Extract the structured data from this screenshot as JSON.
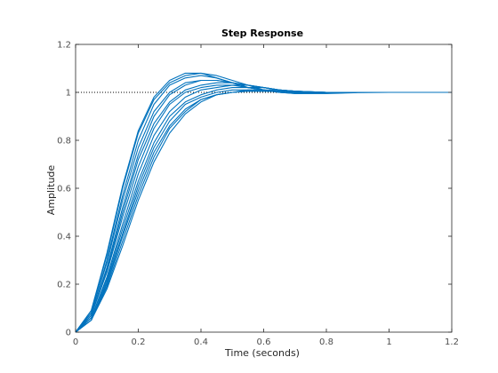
{
  "figure": {
    "background": "#ffffff",
    "axes_color": "#262626",
    "tick_label_color": "#4d4d4d",
    "line_color": "#0072bd"
  },
  "chart_data": {
    "type": "line",
    "title": "Step Response",
    "xlabel": "Time (seconds)",
    "ylabel": "Amplitude",
    "xlim": [
      0,
      1.2
    ],
    "ylim": [
      0,
      1.2
    ],
    "xticks": [
      0,
      0.2,
      0.4,
      0.6,
      0.8,
      1,
      1.2
    ],
    "xtick_labels": [
      "0",
      "0.2",
      "0.4",
      "0.6",
      "0.8",
      "1",
      "1.2"
    ],
    "yticks": [
      0,
      0.2,
      0.4,
      0.6,
      0.8,
      1,
      1.2
    ],
    "ytick_labels": [
      "0",
      "0.2",
      "0.4",
      "0.6",
      "0.8",
      "1",
      "1.2"
    ],
    "grid": false,
    "legend": "none",
    "steady_state_reference": {
      "y": 1,
      "style": "dotted",
      "color": "#000000"
    },
    "series": [
      {
        "x": [
          0,
          0.05,
          0.1,
          0.15,
          0.2,
          0.25,
          0.3,
          0.35,
          0.4,
          0.45,
          0.5,
          0.55,
          0.6,
          0.65,
          0.7,
          0.8,
          0.9,
          1.0,
          1.2
        ],
        "y": [
          0,
          0.09,
          0.33,
          0.61,
          0.84,
          0.98,
          1.05,
          1.08,
          1.08,
          1.06,
          1.04,
          1.02,
          1.01,
          1.0,
          0.995,
          0.995,
          0.999,
          1.0,
          1.0
        ]
      },
      {
        "x": [
          0,
          0.05,
          0.1,
          0.15,
          0.2,
          0.25,
          0.3,
          0.35,
          0.4,
          0.45,
          0.5,
          0.55,
          0.6,
          0.65,
          0.7,
          0.8,
          0.9,
          1.0,
          1.2
        ],
        "y": [
          0,
          0.09,
          0.32,
          0.6,
          0.83,
          0.97,
          1.04,
          1.07,
          1.08,
          1.07,
          1.05,
          1.03,
          1.01,
          1.0,
          0.995,
          0.996,
          1.0,
          1.0,
          1.0
        ]
      },
      {
        "x": [
          0,
          0.05,
          0.1,
          0.15,
          0.2,
          0.25,
          0.3,
          0.35,
          0.4,
          0.45,
          0.5,
          0.55,
          0.6,
          0.65,
          0.7,
          0.8,
          0.9,
          1.0,
          1.2
        ],
        "y": [
          0,
          0.08,
          0.3,
          0.57,
          0.8,
          0.95,
          1.03,
          1.06,
          1.07,
          1.06,
          1.04,
          1.02,
          1.01,
          1.0,
          0.997,
          0.997,
          1.0,
          1.0,
          1.0
        ]
      },
      {
        "x": [
          0,
          0.05,
          0.1,
          0.15,
          0.2,
          0.25,
          0.3,
          0.35,
          0.4,
          0.45,
          0.5,
          0.55,
          0.6,
          0.65,
          0.7,
          0.8,
          0.9,
          1.0,
          1.2
        ],
        "y": [
          0,
          0.08,
          0.29,
          0.55,
          0.77,
          0.92,
          1.0,
          1.04,
          1.05,
          1.05,
          1.04,
          1.02,
          1.01,
          1.0,
          0.997,
          0.998,
          1.0,
          1.0,
          1.0
        ]
      },
      {
        "x": [
          0,
          0.05,
          0.1,
          0.15,
          0.2,
          0.25,
          0.3,
          0.35,
          0.4,
          0.45,
          0.5,
          0.55,
          0.6,
          0.65,
          0.7,
          0.8,
          0.9,
          1.0,
          1.2
        ],
        "y": [
          0,
          0.07,
          0.27,
          0.52,
          0.74,
          0.9,
          0.99,
          1.03,
          1.05,
          1.05,
          1.04,
          1.03,
          1.02,
          1.01,
          1.0,
          0.998,
          1.0,
          1.0,
          1.0
        ]
      },
      {
        "x": [
          0,
          0.05,
          0.1,
          0.15,
          0.2,
          0.25,
          0.3,
          0.35,
          0.4,
          0.45,
          0.5,
          0.55,
          0.6,
          0.65,
          0.7,
          0.8,
          0.9,
          1.0,
          1.2
        ],
        "y": [
          0,
          0.07,
          0.26,
          0.5,
          0.72,
          0.87,
          0.96,
          1.01,
          1.03,
          1.04,
          1.04,
          1.03,
          1.02,
          1.01,
          1.005,
          0.999,
          1.0,
          1.0,
          1.0
        ]
      },
      {
        "x": [
          0,
          0.05,
          0.1,
          0.15,
          0.2,
          0.25,
          0.3,
          0.35,
          0.4,
          0.45,
          0.5,
          0.55,
          0.6,
          0.65,
          0.7,
          0.8,
          0.9,
          1.0,
          1.2
        ],
        "y": [
          0,
          0.07,
          0.25,
          0.48,
          0.69,
          0.85,
          0.95,
          1.0,
          1.02,
          1.03,
          1.03,
          1.03,
          1.02,
          1.01,
          1.005,
          1.0,
          1.0,
          1.0,
          1.0
        ]
      },
      {
        "x": [
          0,
          0.05,
          0.1,
          0.15,
          0.2,
          0.25,
          0.3,
          0.35,
          0.4,
          0.45,
          0.5,
          0.55,
          0.6,
          0.65,
          0.7,
          0.8,
          0.9,
          1.0,
          1.2
        ],
        "y": [
          0,
          0.06,
          0.23,
          0.45,
          0.66,
          0.82,
          0.92,
          0.98,
          1.01,
          1.02,
          1.03,
          1.02,
          1.02,
          1.01,
          1.005,
          1.0,
          1.0,
          1.0,
          1.0
        ]
      },
      {
        "x": [
          0,
          0.05,
          0.1,
          0.15,
          0.2,
          0.25,
          0.3,
          0.35,
          0.4,
          0.45,
          0.5,
          0.55,
          0.6,
          0.65,
          0.7,
          0.8,
          0.9,
          1.0,
          1.2
        ],
        "y": [
          0,
          0.06,
          0.22,
          0.43,
          0.63,
          0.79,
          0.9,
          0.96,
          0.99,
          1.01,
          1.02,
          1.02,
          1.02,
          1.01,
          1.005,
          1.0,
          1.0,
          1.0,
          1.0
        ]
      },
      {
        "x": [
          0,
          0.05,
          0.1,
          0.15,
          0.2,
          0.25,
          0.3,
          0.35,
          0.4,
          0.45,
          0.5,
          0.55,
          0.6,
          0.65,
          0.7,
          0.8,
          0.9,
          1.0,
          1.2
        ],
        "y": [
          0,
          0.05,
          0.21,
          0.41,
          0.61,
          0.77,
          0.88,
          0.95,
          0.98,
          1.0,
          1.01,
          1.01,
          1.01,
          1.01,
          1.005,
          1.0,
          1.0,
          1.0,
          1.0
        ]
      },
      {
        "x": [
          0,
          0.05,
          0.1,
          0.15,
          0.2,
          0.25,
          0.3,
          0.35,
          0.4,
          0.45,
          0.5,
          0.55,
          0.6,
          0.65,
          0.7,
          0.8,
          0.9,
          1.0,
          1.2
        ],
        "y": [
          0,
          0.05,
          0.2,
          0.4,
          0.59,
          0.75,
          0.86,
          0.93,
          0.97,
          0.99,
          1.0,
          1.01,
          1.01,
          1.005,
          1.003,
          1.0,
          1.0,
          1.0,
          1.0
        ]
      },
      {
        "x": [
          0,
          0.05,
          0.1,
          0.15,
          0.2,
          0.25,
          0.3,
          0.35,
          0.4,
          0.45,
          0.5,
          0.55,
          0.6,
          0.65,
          0.7,
          0.8,
          0.9,
          1.0,
          1.2
        ],
        "y": [
          0,
          0.05,
          0.19,
          0.38,
          0.57,
          0.73,
          0.85,
          0.92,
          0.97,
          0.99,
          1.0,
          1.005,
          1.005,
          1.005,
          1.002,
          1.0,
          1.0,
          1.0,
          1.0
        ]
      },
      {
        "x": [
          0,
          0.05,
          0.1,
          0.15,
          0.2,
          0.25,
          0.3,
          0.35,
          0.4,
          0.45,
          0.5,
          0.55,
          0.6,
          0.65,
          0.7,
          0.8,
          0.9,
          1.0,
          1.2
        ],
        "y": [
          0,
          0.05,
          0.18,
          0.36,
          0.55,
          0.71,
          0.83,
          0.91,
          0.96,
          0.99,
          1.0,
          1.005,
          1.005,
          1.003,
          1.002,
          1.0,
          1.0,
          1.0,
          1.0
        ]
      }
    ]
  }
}
